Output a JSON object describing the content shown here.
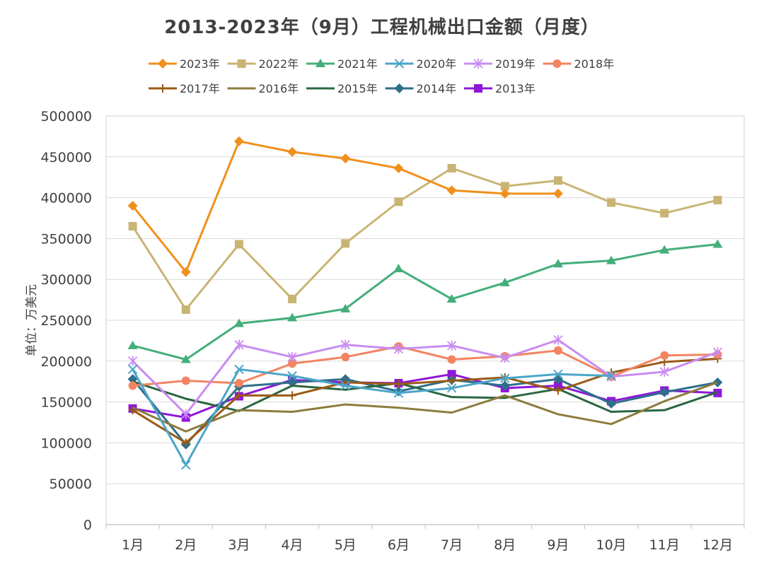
{
  "chart_data": {
    "type": "line",
    "title": "2013-2023年（9月）工程机械出口金额（月度）",
    "ylabel": "单位：万美元",
    "xlabel": "",
    "ylim": [
      0,
      500000
    ],
    "yticks": [
      0,
      50000,
      100000,
      150000,
      200000,
      250000,
      300000,
      350000,
      400000,
      450000,
      500000
    ],
    "categories": [
      "1月",
      "2月",
      "3月",
      "4月",
      "5月",
      "6月",
      "7月",
      "8月",
      "9月",
      "10月",
      "11月",
      "12月"
    ],
    "grid": true,
    "legend_position": "top",
    "series": [
      {
        "name": "2023年",
        "color": "#F0901C",
        "marker": "diamond",
        "values": [
          390000,
          309000,
          469000,
          456000,
          448000,
          436000,
          409000,
          405000,
          405000,
          null,
          null,
          null
        ]
      },
      {
        "name": "2022年",
        "color": "#C9B474",
        "marker": "square",
        "values": [
          365000,
          263000,
          343000,
          276000,
          344000,
          395000,
          436000,
          414000,
          421000,
          394000,
          381000,
          397000
        ]
      },
      {
        "name": "2021年",
        "color": "#44AE7A",
        "marker": "triangle",
        "values": [
          219000,
          202000,
          246000,
          253000,
          264000,
          313000,
          276000,
          296000,
          319000,
          323000,
          336000,
          343000
        ]
      },
      {
        "name": "2020年",
        "color": "#4BA6C8",
        "marker": "x",
        "values": [
          190000,
          73000,
          190000,
          182000,
          170000,
          161000,
          167000,
          179000,
          184000,
          182000,
          null,
          null
        ]
      },
      {
        "name": "2019年",
        "color": "#C98CF0",
        "marker": "star",
        "values": [
          200000,
          135000,
          220000,
          205000,
          220000,
          215000,
          219000,
          204000,
          226000,
          181000,
          187000,
          211000
        ]
      },
      {
        "name": "2018年",
        "color": "#F28462",
        "marker": "circle",
        "values": [
          170000,
          176000,
          173000,
          197000,
          205000,
          218000,
          202000,
          206000,
          213000,
          181000,
          207000,
          208000
        ]
      },
      {
        "name": "2017年",
        "color": "#9A5A14",
        "marker": "plus",
        "values": [
          140000,
          100000,
          158000,
          158000,
          174000,
          172000,
          176000,
          180000,
          164000,
          186000,
          199000,
          203000
        ]
      },
      {
        "name": "2016年",
        "color": "#8C7B3E",
        "marker": "none",
        "values": [
          143000,
          114000,
          140000,
          138000,
          147000,
          143000,
          137000,
          158000,
          135000,
          123000,
          151000,
          174000
        ]
      },
      {
        "name": "2015年",
        "color": "#2A6642",
        "marker": "none",
        "values": [
          175000,
          154000,
          139000,
          170000,
          165000,
          173000,
          156000,
          155000,
          166000,
          138000,
          140000,
          162000
        ]
      },
      {
        "name": "2014年",
        "color": "#2E6F8C",
        "marker": "diamond",
        "values": [
          178000,
          98000,
          169000,
          174000,
          178000,
          163000,
          177000,
          170000,
          178000,
          148000,
          162000,
          174000
        ]
      },
      {
        "name": "2013年",
        "color": "#8E17D8",
        "marker": "square",
        "values": [
          142000,
          131000,
          157000,
          177000,
          174000,
          173000,
          184000,
          167000,
          170000,
          151000,
          164000,
          161000
        ]
      }
    ]
  }
}
